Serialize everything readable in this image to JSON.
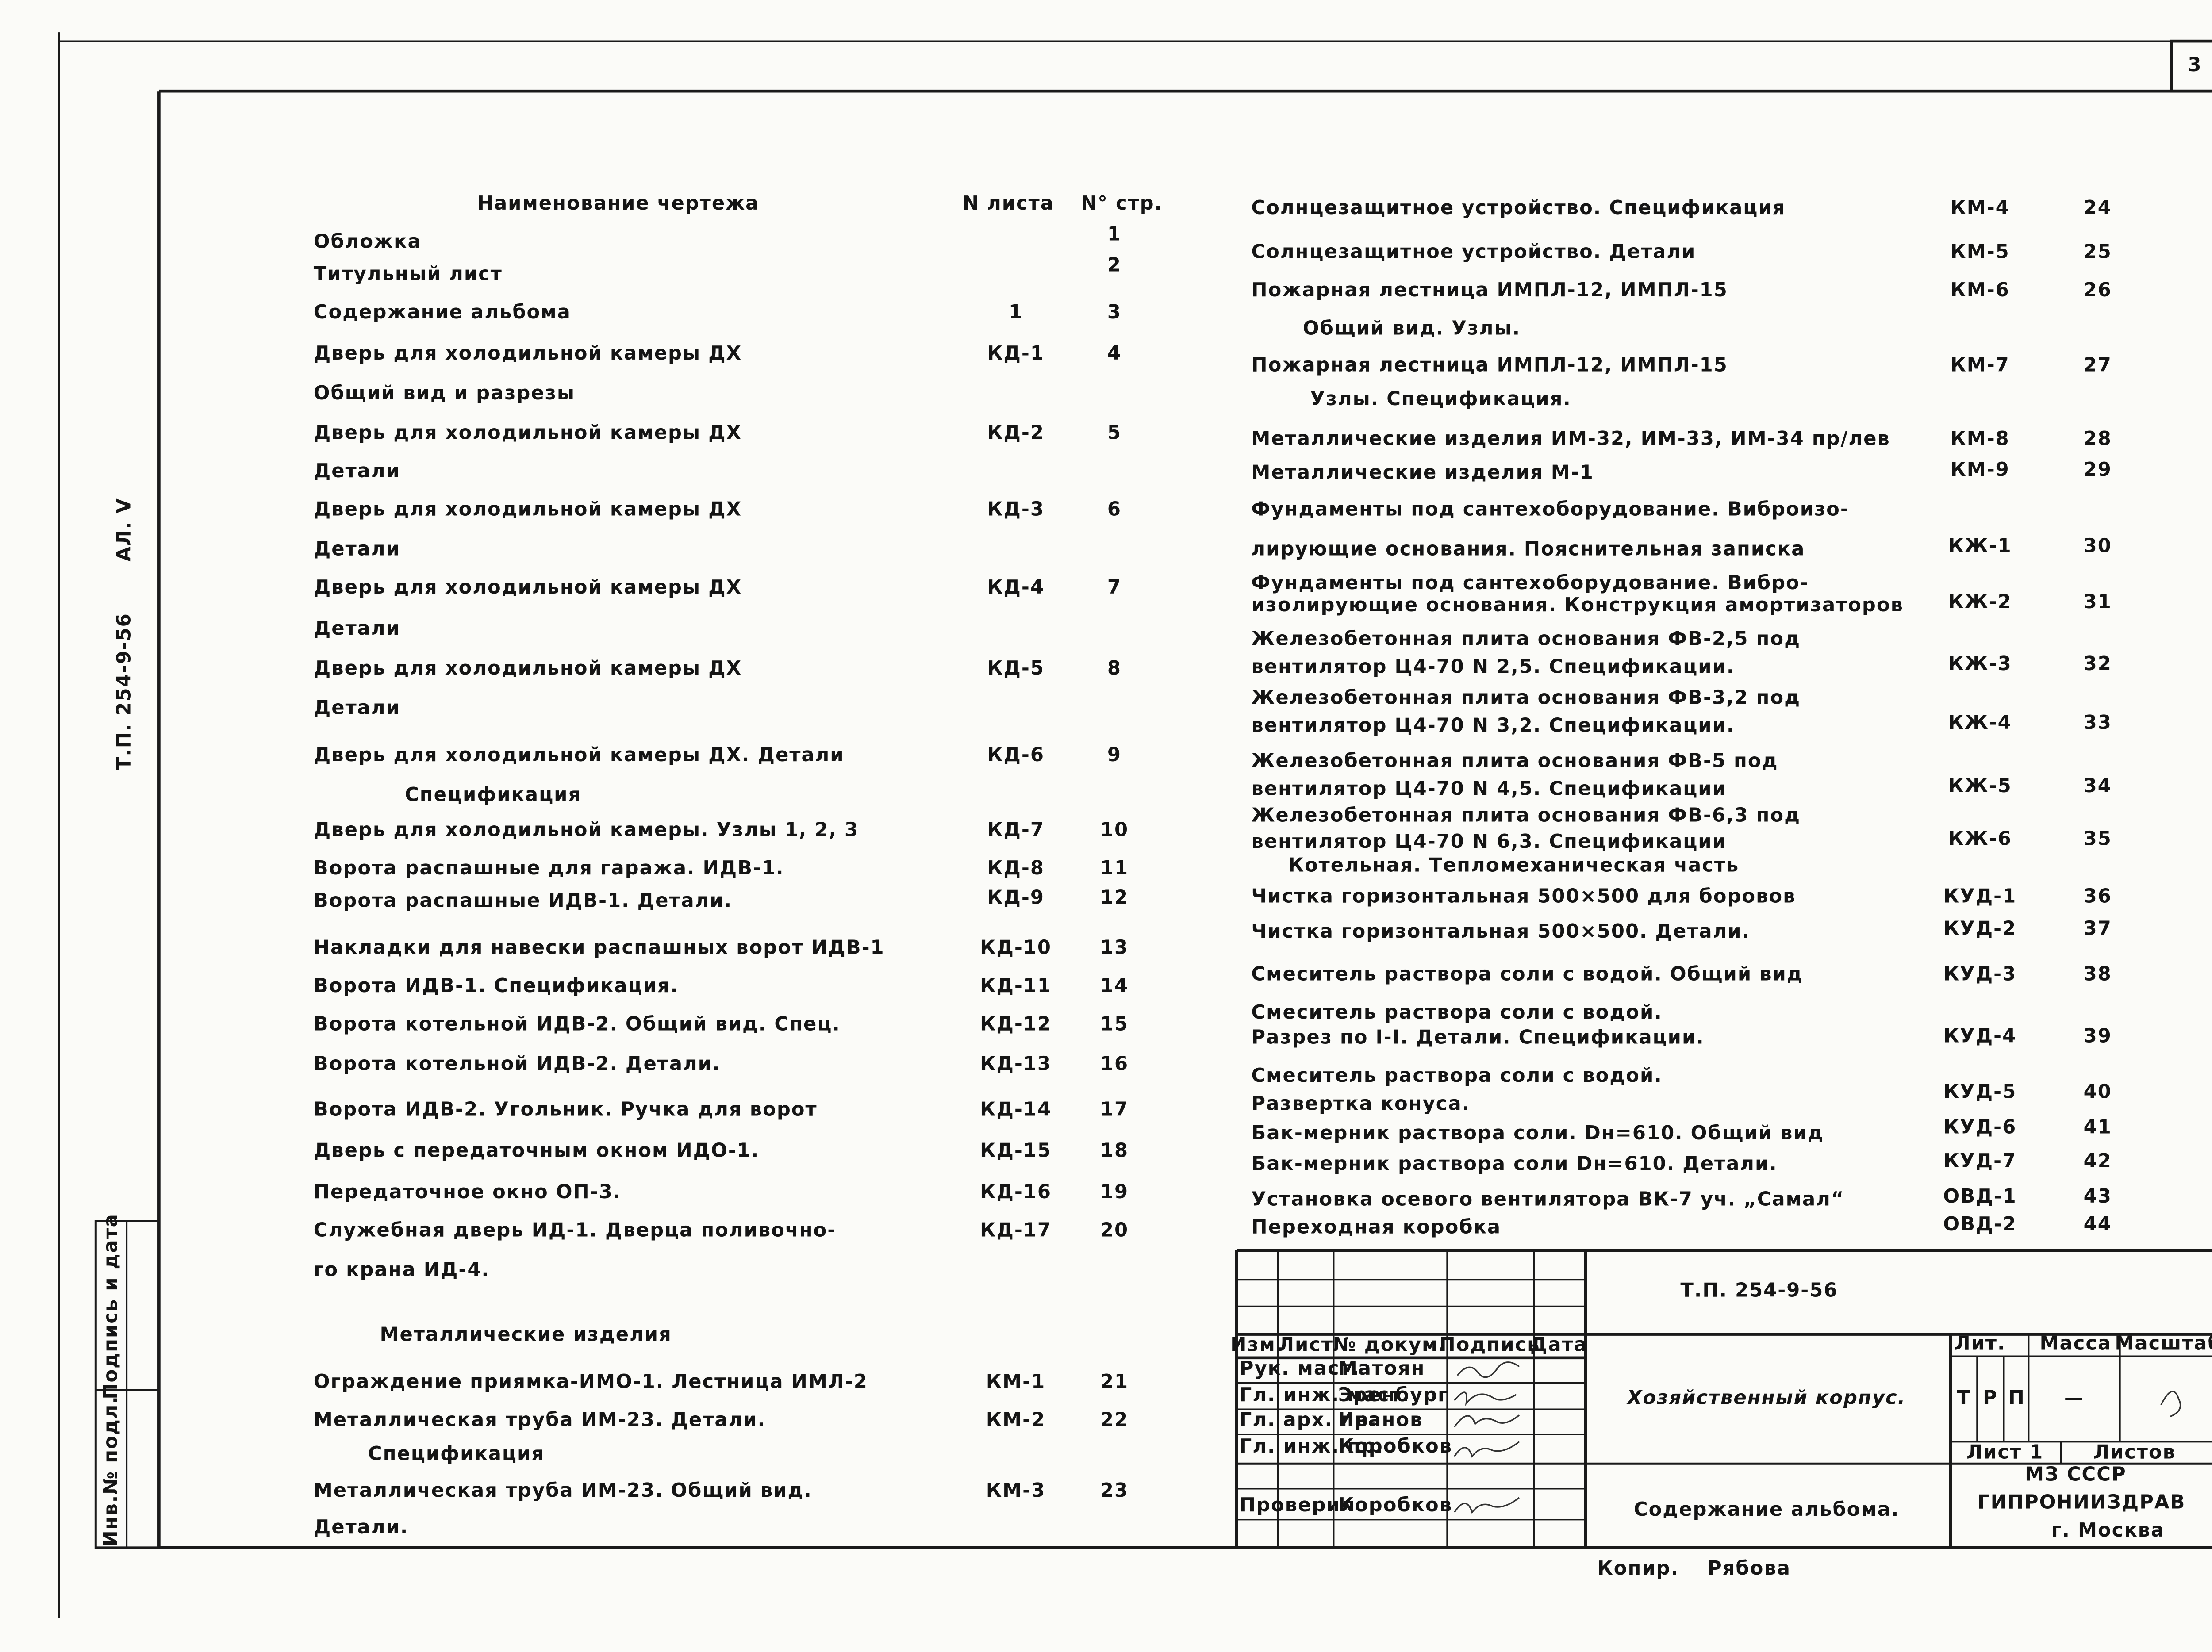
{
  "page_number": "3",
  "side_label": {
    "code": "Т.П. 254-9-56",
    "album": "АЛ. V"
  },
  "stamp": {
    "inventory": "Инв.№ подл.",
    "signature_date": "Подпись и дата"
  },
  "contents": {
    "headers": {
      "name": "Наименование чертежа",
      "sheet": "N листа",
      "page": "N° стр."
    },
    "left": [
      {
        "lines": [
          "Обложка"
        ],
        "page": "1"
      },
      {
        "lines": [
          "Титульный лист"
        ],
        "page": "2"
      },
      {
        "lines": [
          "Содержание альбома"
        ],
        "sheet": "1",
        "page": "3"
      },
      {
        "lines": [
          "Дверь для холодильной камеры ДХ",
          "Общий вид и разрезы"
        ],
        "sheet": "КД-1",
        "page": "4"
      },
      {
        "lines": [
          "Дверь для холодильной камеры ДХ",
          "Детали"
        ],
        "sheet": "КД-2",
        "page": "5"
      },
      {
        "lines": [
          "Дверь для холодильной камеры ДХ",
          "Детали"
        ],
        "sheet": "КД-3",
        "page": "6"
      },
      {
        "lines": [
          "Дверь для холодильной камеры ДХ",
          "Детали"
        ],
        "sheet": "КД-4",
        "page": "7"
      },
      {
        "lines": [
          "Дверь для холодильной камеры ДХ",
          "Детали"
        ],
        "sheet": "КД-5",
        "page": "8"
      },
      {
        "lines": [
          "Дверь для холодильной камеры ДХ. Детали",
          "Спецификация"
        ],
        "sheet": "КД-6",
        "page": "9"
      },
      {
        "lines": [
          "Дверь для холодильной камеры. Узлы 1, 2, 3"
        ],
        "sheet": "КД-7",
        "page": "10"
      },
      {
        "lines": [
          "Ворота распашные для гаража. ИДВ-1."
        ],
        "sheet": "КД-8",
        "page": "11"
      },
      {
        "lines": [
          "Ворота распашные ИДВ-1. Детали."
        ],
        "sheet": "КД-9",
        "page": "12"
      },
      {
        "lines": [
          "Накладки для навески распашных ворот ИДВ-1"
        ],
        "sheet": "КД-10",
        "page": "13"
      },
      {
        "lines": [
          "Ворота ИДВ-1. Спецификация."
        ],
        "sheet": "КД-11",
        "page": "14"
      },
      {
        "lines": [
          "Ворота котельной ИДВ-2. Общий вид. Спец."
        ],
        "sheet": "КД-12",
        "page": "15"
      },
      {
        "lines": [
          "Ворота котельной ИДВ-2. Детали."
        ],
        "sheet": "КД-13",
        "page": "16"
      },
      {
        "lines": [
          "Ворота ИДВ-2. Угольник. Ручка для ворот"
        ],
        "sheet": "КД-14",
        "page": "17"
      },
      {
        "lines": [
          "Дверь с передаточным окном ИДО-1."
        ],
        "sheet": "КД-15",
        "page": "18"
      },
      {
        "lines": [
          "Передаточное окно ОП-3."
        ],
        "sheet": "КД-16",
        "page": "19"
      },
      {
        "lines": [
          "Служебная дверь ИД-1. Дверца поливочно-",
          "го крана ИД-4."
        ],
        "sheet": "КД-17",
        "page": "20"
      },
      {
        "heading": "Металлические изделия"
      },
      {
        "lines": [
          "Ограждение приямка-ИМО-1. Лестница ИМЛ-2"
        ],
        "sheet": "КМ-1",
        "page": "21"
      },
      {
        "lines": [
          "Металлическая труба ИМ-23. Детали.",
          "Спецификация"
        ],
        "sheet": "КМ-2",
        "page": "22"
      },
      {
        "lines": [
          "Металлическая труба ИМ-23. Общий вид.",
          "Детали."
        ],
        "sheet": "КМ-3",
        "page": "23"
      }
    ],
    "right": [
      {
        "lines": [
          "Солнцезащитное устройство. Спецификация"
        ],
        "sheet": "КМ-4",
        "page": "24"
      },
      {
        "lines": [
          "Солнцезащитное устройство. Детали"
        ],
        "sheet": "КМ-5",
        "page": "25"
      },
      {
        "lines": [
          "Пожарная лестница ИМПЛ-12, ИМПЛ-15",
          "Общий вид. Узлы."
        ],
        "sheet": "КМ-6",
        "page": "26"
      },
      {
        "lines": [
          "Пожарная лестница ИМПЛ-12, ИМПЛ-15",
          "Узлы. Спецификация."
        ],
        "sheet": "КМ-7",
        "page": "27"
      },
      {
        "lines": [
          "Металлические изделия ИМ-32, ИМ-33, ИМ-34 пр/лев"
        ],
        "sheet": "КМ-8",
        "page": "28"
      },
      {
        "lines": [
          "Металлические изделия М-1"
        ],
        "sheet": "КМ-9",
        "page": "29"
      },
      {
        "lines": [
          "Фундаменты под сантехоборудование. Виброизо-",
          "лирующие основания. Пояснительная записка"
        ],
        "sheet": "КЖ-1",
        "page": "30"
      },
      {
        "lines": [
          "Фундаменты под сантехоборудование. Вибро-",
          "изолирующие основания. Конструкция амортизаторов"
        ],
        "sheet": "КЖ-2",
        "page": "31"
      },
      {
        "lines": [
          "Железобетонная плита основания ФВ-2,5 под",
          "вентилятор Ц4-70 N 2,5. Спецификации."
        ],
        "sheet": "КЖ-3",
        "page": "32"
      },
      {
        "lines": [
          "Железобетонная плита основания ФВ-3,2 под",
          "вентилятор Ц4-70 N 3,2. Спецификации."
        ],
        "sheet": "КЖ-4",
        "page": "33"
      },
      {
        "lines": [
          "Железобетонная плита основания ФВ-5 под",
          "вентилятор Ц4-70 N 4,5. Спецификации"
        ],
        "sheet": "КЖ-5",
        "page": "34"
      },
      {
        "lines": [
          "Железобетонная плита основания ФВ-6,3 под",
          "вентилятор Ц4-70 N 6,3. Спецификации"
        ],
        "sheet": "КЖ-6",
        "page": "35"
      },
      {
        "heading": "Котельная. Тепломеханическая часть"
      },
      {
        "lines": [
          "Чистка горизонтальная 500×500 для боровов"
        ],
        "sheet": "КУД-1",
        "page": "36"
      },
      {
        "lines": [
          "Чистка горизонтальная 500×500. Детали."
        ],
        "sheet": "КУД-2",
        "page": "37"
      },
      {
        "lines": [
          "Смеситель раствора соли с водой. Общий вид"
        ],
        "sheet": "КУД-3",
        "page": "38"
      },
      {
        "lines": [
          "Смеситель раствора соли с водой.",
          "Разрез по I-I. Детали. Спецификации."
        ],
        "sheet": "КУД-4",
        "page": "39"
      },
      {
        "lines": [
          "Смеситель раствора соли с водой.",
          "Развертка конуса."
        ],
        "sheet": "КУД-5",
        "page": "40"
      },
      {
        "lines": [
          "Бак-мерник раствора соли. Dн=610. Общий вид"
        ],
        "sheet": "КУД-6",
        "page": "41"
      },
      {
        "lines": [
          "Бак-мерник раствора соли Dн=610. Детали."
        ],
        "sheet": "КУД-7",
        "page": "42"
      },
      {
        "lines": [
          "Установка осевого вентилятора ВК-7 уч. „Самал“"
        ],
        "sheet": "ОВД-1",
        "page": "43"
      },
      {
        "lines": [
          "Переходная коробка"
        ],
        "sheet": "ОВД-2",
        "page": "44"
      }
    ]
  },
  "title_block": {
    "designation": "Т.П. 254-9-56",
    "columns": [
      "Изм.",
      "Лист",
      "№ докум.",
      "Подпись",
      "Дата"
    ],
    "signatures": [
      {
        "role": "Рук. маст.",
        "name": "Матоян"
      },
      {
        "role": "Гл. инж. маст.",
        "name": "Эренбург"
      },
      {
        "role": "Гл. арх. пр.",
        "name": "Иванов"
      },
      {
        "role": "Гл. инж. пр.",
        "name": "Коробков"
      },
      {
        "role": "Проверил",
        "name": "Коробков"
      }
    ],
    "object": "Хозяйственный корпус.",
    "sheet_title": "Содержание альбома.",
    "lit_header": "Лит.",
    "mass_header": "Масса",
    "scale_header": "Масштаб",
    "lit": [
      "Т",
      "Р",
      "П"
    ],
    "mass": "—",
    "sheet": "Лист 1",
    "sheets": "Листов",
    "ministry": "МЗ СССР",
    "organization": "ГИПРОНИИЗДРАВ",
    "city": "г. Москва"
  },
  "copier": {
    "label": "Копир.",
    "name": "Рябова"
  }
}
